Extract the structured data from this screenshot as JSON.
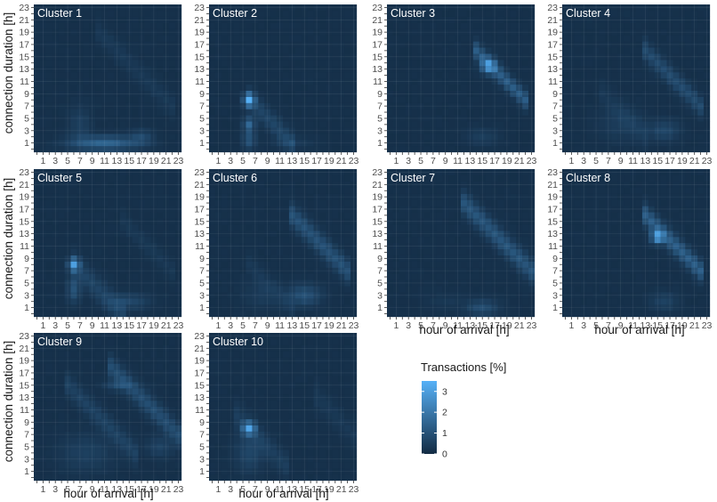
{
  "chart_data": {
    "type": "heatmap",
    "facet_layout": "4 columns x 3 rows",
    "x_label": "hour of arrival [h]",
    "y_label": "connection duration [h]",
    "x_range": [
      0,
      23
    ],
    "y_range": [
      0,
      23
    ],
    "x_tick_labels": [
      "1",
      "3",
      "5",
      "7",
      "9",
      "11",
      "13",
      "15",
      "17",
      "19",
      "21",
      "23"
    ],
    "y_tick_labels": [
      "1",
      "3",
      "5",
      "7",
      "9",
      "11",
      "13",
      "15",
      "17",
      "19",
      "21",
      "23"
    ],
    "legend": {
      "title": "Transactions [%]",
      "placement": "right",
      "ticks": [
        "0",
        "1",
        "2",
        "3"
      ],
      "range": [
        0,
        3.5
      ],
      "color_low": "#132b43",
      "color_high": "#56b1f7"
    },
    "panels": [
      {
        "title": "Cluster 1",
        "components": [
          {
            "kind": "blob",
            "x": 11,
            "y": 1,
            "sx": 3.8,
            "sy": 0.8,
            "amp": 1.35
          },
          {
            "kind": "blob",
            "x": 17,
            "y": 2,
            "sx": 1.2,
            "sy": 0.9,
            "amp": 0.55
          },
          {
            "kind": "blob",
            "x": 7,
            "y": 4,
            "sx": 1.2,
            "sy": 2.2,
            "amp": 0.4
          },
          {
            "kind": "diag",
            "c": 29,
            "x0": 10,
            "x1": 22,
            "w": 0.9,
            "amp": 0.22
          }
        ]
      },
      {
        "title": "Cluster 2",
        "components": [
          {
            "kind": "blob",
            "x": 6,
            "y": 8,
            "sx": 0.6,
            "sy": 0.7,
            "amp": 3.0
          },
          {
            "kind": "blob",
            "x": 6,
            "y": 4,
            "sx": 0.6,
            "sy": 0.8,
            "amp": 1.4
          },
          {
            "kind": "blob",
            "x": 6,
            "y": 1.5,
            "sx": 0.7,
            "sy": 1.0,
            "amp": 0.9
          },
          {
            "kind": "diag",
            "c": 14,
            "x0": 6,
            "x1": 13,
            "w": 0.9,
            "amp": 0.55
          },
          {
            "kind": "blob",
            "x": 13,
            "y": 1,
            "sx": 2.5,
            "sy": 0.7,
            "amp": 0.3
          }
        ]
      },
      {
        "title": "Cluster 3",
        "components": [
          {
            "kind": "blob",
            "x": 16,
            "y": 13.5,
            "sx": 0.8,
            "sy": 0.8,
            "amp": 2.1
          },
          {
            "kind": "diag",
            "c": 30,
            "x0": 14,
            "x1": 22,
            "w": 0.7,
            "amp": 1.15
          },
          {
            "kind": "blob",
            "x": 15,
            "y": 2,
            "sx": 1.8,
            "sy": 1.0,
            "amp": 0.35
          }
        ]
      },
      {
        "title": "Cluster 4",
        "components": [
          {
            "kind": "diag",
            "c": 29,
            "x0": 13,
            "x1": 22,
            "w": 0.8,
            "amp": 0.7
          },
          {
            "kind": "blob",
            "x": 16,
            "y": 3,
            "sx": 1.8,
            "sy": 1.1,
            "amp": 0.6
          },
          {
            "kind": "blob",
            "x": 9,
            "y": 4,
            "sx": 2.5,
            "sy": 2.0,
            "amp": 0.3
          },
          {
            "kind": "diag",
            "c": 15,
            "x0": 6,
            "x1": 13,
            "w": 1.0,
            "amp": 0.22
          }
        ]
      },
      {
        "title": "Cluster 5",
        "components": [
          {
            "kind": "blob",
            "x": 6,
            "y": 8,
            "sx": 0.6,
            "sy": 0.7,
            "amp": 2.4
          },
          {
            "kind": "blob",
            "x": 6,
            "y": 4,
            "sx": 0.7,
            "sy": 1.4,
            "amp": 0.9
          },
          {
            "kind": "diag",
            "c": 14,
            "x0": 6,
            "x1": 14,
            "w": 1.0,
            "amp": 0.5
          },
          {
            "kind": "blob",
            "x": 15,
            "y": 2,
            "sx": 2.2,
            "sy": 0.9,
            "amp": 0.6
          },
          {
            "kind": "diag",
            "c": 29,
            "x0": 14,
            "x1": 22,
            "w": 0.8,
            "amp": 0.2
          }
        ]
      },
      {
        "title": "Cluster 6",
        "components": [
          {
            "kind": "diag",
            "c": 29,
            "x0": 13,
            "x1": 22,
            "w": 0.9,
            "amp": 0.85
          },
          {
            "kind": "blob",
            "x": 15,
            "y": 3,
            "sx": 1.8,
            "sy": 1.2,
            "amp": 0.85
          },
          {
            "kind": "blob",
            "x": 8,
            "y": 3,
            "sx": 2.0,
            "sy": 1.6,
            "amp": 0.3
          },
          {
            "kind": "diag",
            "c": 14,
            "x0": 6,
            "x1": 13,
            "w": 0.9,
            "amp": 0.2
          }
        ]
      },
      {
        "title": "Cluster 7",
        "components": [
          {
            "kind": "diag",
            "c": 30,
            "x0": 12,
            "x1": 23,
            "w": 0.9,
            "amp": 0.95
          },
          {
            "kind": "blob",
            "x": 15,
            "y": 1,
            "sx": 1.8,
            "sy": 0.9,
            "amp": 0.75
          },
          {
            "kind": "blob",
            "x": 9,
            "y": 2,
            "sx": 2.0,
            "sy": 1.0,
            "amp": 0.2
          }
        ]
      },
      {
        "title": "Cluster 8",
        "components": [
          {
            "kind": "blob",
            "x": 15,
            "y": 12.5,
            "sx": 0.7,
            "sy": 0.7,
            "amp": 2.6
          },
          {
            "kind": "diag",
            "c": 29,
            "x0": 13,
            "x1": 22,
            "w": 0.8,
            "amp": 1.2
          },
          {
            "kind": "blob",
            "x": 16,
            "y": 2,
            "sx": 1.6,
            "sy": 1.1,
            "amp": 0.45
          }
        ]
      },
      {
        "title": "Cluster 9",
        "components": [
          {
            "kind": "diag",
            "c": 30,
            "x0": 12,
            "x1": 23,
            "w": 0.9,
            "amp": 0.75
          },
          {
            "kind": "diag",
            "c": 20,
            "x0": 5,
            "x1": 16,
            "w": 0.9,
            "amp": 0.45
          },
          {
            "kind": "blob",
            "x": 13,
            "y": 15,
            "sx": 1.5,
            "sy": 0.6,
            "amp": 0.55
          },
          {
            "kind": "blob",
            "x": 8,
            "y": 4,
            "sx": 3.0,
            "sy": 2.2,
            "amp": 0.4
          },
          {
            "kind": "blob",
            "x": 20,
            "y": 5,
            "sx": 1.5,
            "sy": 1.2,
            "amp": 0.45
          }
        ]
      },
      {
        "title": "Cluster 10",
        "components": [
          {
            "kind": "blob",
            "x": 6,
            "y": 8,
            "sx": 0.7,
            "sy": 0.7,
            "amp": 2.6
          },
          {
            "kind": "blob",
            "x": 6,
            "y": 4,
            "sx": 1.6,
            "sy": 2.2,
            "amp": 0.55
          },
          {
            "kind": "diag",
            "c": 14,
            "x0": 4,
            "x1": 12,
            "w": 1.0,
            "amp": 0.35
          },
          {
            "kind": "diag",
            "c": 30,
            "x0": 17,
            "x1": 23,
            "w": 1.0,
            "amp": 0.2
          }
        ]
      }
    ]
  }
}
